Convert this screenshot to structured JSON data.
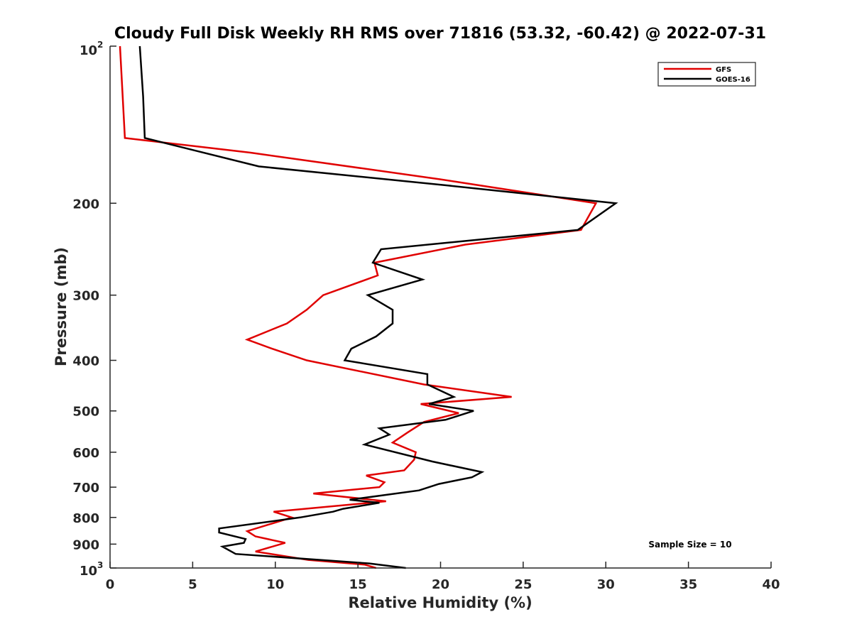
{
  "chart_data": {
    "type": "line",
    "title": "Cloudy Full Disk Weekly RH RMS over 71816 (53.32, -60.42) @ 2022-07-31",
    "xlabel": "Relative Humidity (%)",
    "ylabel": "Pressure (mb)",
    "xlim": [
      0,
      40
    ],
    "ylim": [
      100,
      1000
    ],
    "y_scale": "log",
    "y_reversed": true,
    "x_ticks": [
      0,
      5,
      10,
      15,
      20,
      25,
      30,
      35,
      40
    ],
    "x_tick_labels": [
      "0",
      "5",
      "10",
      "15",
      "20",
      "25",
      "30",
      "35",
      "40"
    ],
    "y_ticks": [
      200,
      300,
      400,
      500,
      600,
      700,
      800,
      900
    ],
    "y_tick_labels": [
      "200",
      "300",
      "400",
      "500",
      "600",
      "700",
      "800",
      "900"
    ],
    "y_end_labels": {
      "top": {
        "base": "10",
        "exp": "2"
      },
      "bottom": {
        "base": "10",
        "exp": "3"
      }
    },
    "grid": false,
    "legend_position": "top-right",
    "annotation": "Sample Size = 10",
    "series": [
      {
        "name": "GFS",
        "color": "#e00000",
        "points": [
          [
            0.6,
            100
          ],
          [
            0.9,
            150
          ],
          [
            8.5,
            160
          ],
          [
            20.0,
            180
          ],
          [
            29.4,
            200
          ],
          [
            28.5,
            225
          ],
          [
            21.5,
            240
          ],
          [
            16.0,
            260
          ],
          [
            16.2,
            275
          ],
          [
            12.9,
            300
          ],
          [
            11.9,
            320
          ],
          [
            10.7,
            340
          ],
          [
            8.3,
            365
          ],
          [
            9.8,
            380
          ],
          [
            11.9,
            400
          ],
          [
            19.0,
            445
          ],
          [
            24.3,
            470
          ],
          [
            18.8,
            485
          ],
          [
            21.1,
            505
          ],
          [
            19.0,
            525
          ],
          [
            18.0,
            550
          ],
          [
            17.1,
            575
          ],
          [
            18.5,
            600
          ],
          [
            18.4,
            620
          ],
          [
            17.8,
            650
          ],
          [
            15.5,
            665
          ],
          [
            16.6,
            685
          ],
          [
            16.3,
            700
          ],
          [
            12.3,
            720
          ],
          [
            16.7,
            745
          ],
          [
            9.9,
            780
          ],
          [
            11.0,
            800
          ],
          [
            8.3,
            850
          ],
          [
            8.8,
            870
          ],
          [
            10.6,
            895
          ],
          [
            8.8,
            930
          ],
          [
            12.0,
            965
          ],
          [
            15.4,
            985
          ],
          [
            16.1,
            1000
          ]
        ]
      },
      {
        "name": "GOES-16",
        "color": "#000000",
        "points": [
          [
            1.8,
            100
          ],
          [
            2.0,
            125
          ],
          [
            2.1,
            150
          ],
          [
            9.0,
            170
          ],
          [
            20.5,
            185
          ],
          [
            30.6,
            200
          ],
          [
            28.3,
            225
          ],
          [
            16.4,
            245
          ],
          [
            15.9,
            260
          ],
          [
            18.9,
            280
          ],
          [
            15.6,
            300
          ],
          [
            17.1,
            320
          ],
          [
            17.1,
            340
          ],
          [
            16.1,
            360
          ],
          [
            14.6,
            380
          ],
          [
            14.2,
            400
          ],
          [
            19.2,
            425
          ],
          [
            19.2,
            445
          ],
          [
            20.8,
            470
          ],
          [
            19.3,
            485
          ],
          [
            22.0,
            500
          ],
          [
            20.3,
            520
          ],
          [
            16.3,
            540
          ],
          [
            16.9,
            555
          ],
          [
            15.4,
            580
          ],
          [
            19.5,
            625
          ],
          [
            22.5,
            655
          ],
          [
            21.9,
            670
          ],
          [
            19.9,
            690
          ],
          [
            18.7,
            710
          ],
          [
            14.5,
            740
          ],
          [
            16.3,
            750
          ],
          [
            14.1,
            770
          ],
          [
            13.5,
            780
          ],
          [
            11.5,
            800
          ],
          [
            6.6,
            840
          ],
          [
            6.6,
            855
          ],
          [
            8.2,
            880
          ],
          [
            8.1,
            895
          ],
          [
            6.8,
            910
          ],
          [
            7.6,
            940
          ],
          [
            15.7,
            980
          ],
          [
            17.9,
            1000
          ]
        ]
      }
    ]
  }
}
